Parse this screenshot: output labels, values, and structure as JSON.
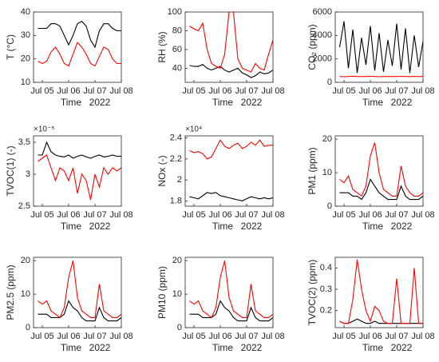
{
  "chart_data": [
    {
      "type": "line",
      "ylabel": "T (°C)",
      "xlabel": "Time",
      "xsublabel": "2022",
      "x": [
        "2022-07-04T20:00",
        "2022-07-05T00:00",
        "2022-07-05T04:00",
        "2022-07-05T08:00",
        "2022-07-05T12:00",
        "2022-07-05T16:00",
        "2022-07-05T20:00",
        "2022-07-06T00:00",
        "2022-07-06T04:00",
        "2022-07-06T08:00",
        "2022-07-06T12:00",
        "2022-07-06T16:00",
        "2022-07-06T20:00",
        "2022-07-07T00:00",
        "2022-07-07T04:00",
        "2022-07-07T08:00",
        "2022-07-07T12:00",
        "2022-07-07T16:00",
        "2022-07-07T20:00",
        "2022-07-08T00:00"
      ],
      "xlim": [
        "2022-07-04T16:00",
        "2022-07-08T00:00"
      ],
      "xticks": [
        {
          "value": "2022-07-05T00:00",
          "label": "Jul 05"
        },
        {
          "value": "2022-07-06T00:00",
          "label": "Jul 06"
        },
        {
          "value": "2022-07-07T00:00",
          "label": "Jul 07"
        },
        {
          "value": "2022-07-08T00:00",
          "label": "Jul 08"
        }
      ],
      "ylim": [
        10,
        40
      ],
      "yticks": [
        10,
        20,
        30,
        40
      ],
      "series": [
        {
          "color": "#000000",
          "values": [
            33,
            33,
            33,
            35,
            35,
            34,
            30,
            26,
            30,
            35,
            36,
            34,
            28,
            25,
            32,
            35,
            35,
            33,
            32,
            32
          ]
        },
        {
          "color": "#ff0000",
          "values": [
            19,
            18,
            19,
            23,
            25,
            22,
            18,
            17,
            22,
            27,
            25,
            22,
            18,
            17,
            21,
            25,
            24,
            20,
            18,
            18
          ]
        }
      ]
    },
    {
      "type": "line",
      "ylabel": "RH (%)",
      "xlabel": "Time",
      "xsublabel": "2022",
      "x": [
        "2022-07-04T20:00",
        "2022-07-05T00:00",
        "2022-07-05T04:00",
        "2022-07-05T08:00",
        "2022-07-05T12:00",
        "2022-07-05T16:00",
        "2022-07-05T20:00",
        "2022-07-06T00:00",
        "2022-07-06T04:00",
        "2022-07-06T08:00",
        "2022-07-06T12:00",
        "2022-07-06T16:00",
        "2022-07-06T20:00",
        "2022-07-07T00:00",
        "2022-07-07T04:00",
        "2022-07-07T08:00",
        "2022-07-07T12:00",
        "2022-07-07T16:00",
        "2022-07-07T20:00",
        "2022-07-08T00:00"
      ],
      "xlim": [
        "2022-07-04T16:00",
        "2022-07-08T00:00"
      ],
      "xticks": [
        {
          "value": "2022-07-05T00:00",
          "label": "Jul 05"
        },
        {
          "value": "2022-07-06T00:00",
          "label": "Jul 06"
        },
        {
          "value": "2022-07-07T00:00",
          "label": "Jul 07"
        },
        {
          "value": "2022-07-08T00:00",
          "label": "Jul 08"
        }
      ],
      "ylim": [
        25,
        100
      ],
      "yticks": [
        40,
        60,
        80,
        100
      ],
      "series": [
        {
          "color": "#000000",
          "values": [
            43,
            42,
            42,
            44,
            40,
            38,
            40,
            42,
            38,
            36,
            38,
            40,
            35,
            33,
            30,
            32,
            36,
            34,
            35,
            38
          ]
        },
        {
          "color": "#ff0000",
          "values": [
            85,
            82,
            80,
            88,
            60,
            45,
            42,
            40,
            55,
            100,
            100,
            50,
            40,
            38,
            36,
            45,
            40,
            38,
            55,
            70
          ]
        }
      ]
    },
    {
      "type": "line",
      "ylabel": "CO₂ (ppm)",
      "xlabel": "Time",
      "xsublabel": "2022",
      "x": [
        "2022-07-04T20:00",
        "2022-07-05T00:00",
        "2022-07-05T04:00",
        "2022-07-05T08:00",
        "2022-07-05T12:00",
        "2022-07-05T16:00",
        "2022-07-05T20:00",
        "2022-07-06T00:00",
        "2022-07-06T04:00",
        "2022-07-06T08:00",
        "2022-07-06T12:00",
        "2022-07-06T16:00",
        "2022-07-06T20:00",
        "2022-07-07T00:00",
        "2022-07-07T04:00",
        "2022-07-07T08:00",
        "2022-07-07T12:00",
        "2022-07-07T16:00",
        "2022-07-07T20:00",
        "2022-07-08T00:00"
      ],
      "xlim": [
        "2022-07-04T16:00",
        "2022-07-08T00:00"
      ],
      "xticks": [
        {
          "value": "2022-07-05T00:00",
          "label": "Jul 05"
        },
        {
          "value": "2022-07-06T00:00",
          "label": "Jul 06"
        },
        {
          "value": "2022-07-07T00:00",
          "label": "Jul 07"
        },
        {
          "value": "2022-07-08T00:00",
          "label": "Jul 08"
        }
      ],
      "ylim": [
        0,
        6000
      ],
      "yticks": [
        0,
        2000,
        4000,
        6000
      ],
      "series": [
        {
          "color": "#000000",
          "values": [
            3000,
            5200,
            1200,
            4500,
            800,
            3800,
            1500,
            4800,
            1000,
            4200,
            900,
            3600,
            1400,
            5000,
            1100,
            4600,
            800,
            4000,
            1300,
            3500
          ]
        },
        {
          "color": "#ff0000",
          "values": [
            500,
            480,
            500,
            520,
            500,
            490,
            500,
            510,
            500,
            480,
            500,
            500,
            490,
            500,
            510,
            500,
            490,
            500,
            500,
            500
          ]
        }
      ]
    },
    {
      "type": "line",
      "ylabel": "TVOC(1) (-)",
      "xlabel": "Time",
      "xsublabel": "2022",
      "axis_multiplier": "×10⁻⁵",
      "x": [
        "2022-07-04T20:00",
        "2022-07-05T00:00",
        "2022-07-05T04:00",
        "2022-07-05T08:00",
        "2022-07-05T12:00",
        "2022-07-05T16:00",
        "2022-07-05T20:00",
        "2022-07-06T00:00",
        "2022-07-06T04:00",
        "2022-07-06T08:00",
        "2022-07-06T12:00",
        "2022-07-06T16:00",
        "2022-07-06T20:00",
        "2022-07-07T00:00",
        "2022-07-07T04:00",
        "2022-07-07T08:00",
        "2022-07-07T12:00",
        "2022-07-07T16:00",
        "2022-07-07T20:00",
        "2022-07-08T00:00"
      ],
      "xlim": [
        "2022-07-04T16:00",
        "2022-07-08T00:00"
      ],
      "xticks": [
        {
          "value": "2022-07-05T00:00",
          "label": "Jul 05"
        },
        {
          "value": "2022-07-06T00:00",
          "label": "Jul 06"
        },
        {
          "value": "2022-07-07T00:00",
          "label": "Jul 07"
        },
        {
          "value": "2022-07-08T00:00",
          "label": "Jul 08"
        }
      ],
      "ylim": [
        2.5,
        3.6
      ],
      "yticks": [
        2.5,
        3,
        3.5
      ],
      "series": [
        {
          "color": "#000000",
          "values": [
            3.3,
            3.3,
            3.5,
            3.35,
            3.3,
            3.28,
            3.27,
            3.3,
            3.25,
            3.28,
            3.3,
            3.27,
            3.25,
            3.28,
            3.3,
            3.27,
            3.28,
            3.3,
            3.28,
            3.28
          ]
        },
        {
          "color": "#ff0000",
          "values": [
            3.2,
            3.25,
            3.3,
            3.1,
            2.9,
            3.1,
            3.05,
            2.9,
            3.1,
            2.7,
            3.0,
            2.9,
            2.6,
            3.0,
            2.8,
            3.1,
            3.0,
            3.1,
            3.05,
            3.1
          ]
        }
      ]
    },
    {
      "type": "line",
      "ylabel": "NOx (-)",
      "xlabel": "Time",
      "xsublabel": "2022",
      "axis_multiplier": "×10⁴",
      "x": [
        "2022-07-04T20:00",
        "2022-07-05T00:00",
        "2022-07-05T04:00",
        "2022-07-05T08:00",
        "2022-07-05T12:00",
        "2022-07-05T16:00",
        "2022-07-05T20:00",
        "2022-07-06T00:00",
        "2022-07-06T04:00",
        "2022-07-06T08:00",
        "2022-07-06T12:00",
        "2022-07-06T16:00",
        "2022-07-06T20:00",
        "2022-07-07T00:00",
        "2022-07-07T04:00",
        "2022-07-07T08:00",
        "2022-07-07T12:00",
        "2022-07-07T16:00",
        "2022-07-07T20:00",
        "2022-07-08T00:00"
      ],
      "xlim": [
        "2022-07-04T16:00",
        "2022-07-08T00:00"
      ],
      "xticks": [
        {
          "value": "2022-07-05T00:00",
          "label": "Jul 05"
        },
        {
          "value": "2022-07-06T00:00",
          "label": "Jul 06"
        },
        {
          "value": "2022-07-07T00:00",
          "label": "Jul 07"
        },
        {
          "value": "2022-07-08T00:00",
          "label": "Jul 08"
        }
      ],
      "ylim": [
        1.75,
        2.42
      ],
      "yticks": [
        1.8,
        2,
        2.2,
        2.4
      ],
      "series": [
        {
          "color": "#000000",
          "values": [
            1.84,
            1.83,
            1.82,
            1.85,
            1.88,
            1.87,
            1.88,
            1.85,
            1.84,
            1.83,
            1.82,
            1.81,
            1.8,
            1.82,
            1.84,
            1.83,
            1.82,
            1.83,
            1.82,
            1.83
          ]
        },
        {
          "color": "#ff0000",
          "values": [
            2.28,
            2.26,
            2.27,
            2.25,
            2.2,
            2.22,
            2.3,
            2.38,
            2.32,
            2.3,
            2.33,
            2.35,
            2.3,
            2.32,
            2.36,
            2.33,
            2.38,
            2.32,
            2.33,
            2.33
          ]
        }
      ]
    },
    {
      "type": "line",
      "ylabel": "PM1 (ppm)",
      "xlabel": "Time",
      "xsublabel": "2022",
      "x": [
        "2022-07-04T20:00",
        "2022-07-05T00:00",
        "2022-07-05T04:00",
        "2022-07-05T08:00",
        "2022-07-05T12:00",
        "2022-07-05T16:00",
        "2022-07-05T20:00",
        "2022-07-06T00:00",
        "2022-07-06T04:00",
        "2022-07-06T08:00",
        "2022-07-06T12:00",
        "2022-07-06T16:00",
        "2022-07-06T20:00",
        "2022-07-07T00:00",
        "2022-07-07T04:00",
        "2022-07-07T08:00",
        "2022-07-07T12:00",
        "2022-07-07T16:00",
        "2022-07-07T20:00",
        "2022-07-08T00:00"
      ],
      "xlim": [
        "2022-07-04T16:00",
        "2022-07-08T00:00"
      ],
      "xticks": [
        {
          "value": "2022-07-05T00:00",
          "label": "Jul 05"
        },
        {
          "value": "2022-07-06T00:00",
          "label": "Jul 06"
        },
        {
          "value": "2022-07-07T00:00",
          "label": "Jul 07"
        },
        {
          "value": "2022-07-08T00:00",
          "label": "Jul 08"
        }
      ],
      "ylim": [
        0,
        21
      ],
      "yticks": [
        0,
        10,
        20
      ],
      "series": [
        {
          "color": "#000000",
          "values": [
            4,
            4,
            4,
            3,
            3,
            2,
            4,
            8,
            6,
            4,
            3,
            2,
            2,
            2,
            6,
            3,
            2,
            2,
            2,
            3
          ]
        },
        {
          "color": "#ff0000",
          "values": [
            8,
            7,
            9,
            5,
            4,
            3,
            6,
            15,
            19,
            10,
            5,
            4,
            3,
            3,
            12,
            6,
            4,
            3,
            3,
            4
          ]
        }
      ]
    },
    {
      "type": "line",
      "ylabel": "PM2.5 (ppm)",
      "xlabel": "Time",
      "xsublabel": "2022",
      "x": [
        "2022-07-04T20:00",
        "2022-07-05T00:00",
        "2022-07-05T04:00",
        "2022-07-05T08:00",
        "2022-07-05T12:00",
        "2022-07-05T16:00",
        "2022-07-05T20:00",
        "2022-07-06T00:00",
        "2022-07-06T04:00",
        "2022-07-06T08:00",
        "2022-07-06T12:00",
        "2022-07-06T16:00",
        "2022-07-06T20:00",
        "2022-07-07T00:00",
        "2022-07-07T04:00",
        "2022-07-07T08:00",
        "2022-07-07T12:00",
        "2022-07-07T16:00",
        "2022-07-07T20:00",
        "2022-07-08T00:00"
      ],
      "xlim": [
        "2022-07-04T16:00",
        "2022-07-08T00:00"
      ],
      "xticks": [
        {
          "value": "2022-07-05T00:00",
          "label": "Jul 05"
        },
        {
          "value": "2022-07-06T00:00",
          "label": "Jul 06"
        },
        {
          "value": "2022-07-07T00:00",
          "label": "Jul 07"
        },
        {
          "value": "2022-07-08T00:00",
          "label": "Jul 08"
        }
      ],
      "ylim": [
        0,
        21
      ],
      "yticks": [
        0,
        10,
        20
      ],
      "series": [
        {
          "color": "#000000",
          "values": [
            4,
            4,
            4,
            3,
            3,
            3,
            4,
            8,
            6,
            5,
            3,
            2,
            2,
            2,
            6,
            3,
            2,
            2,
            2,
            3
          ]
        },
        {
          "color": "#ff0000",
          "values": [
            8,
            7,
            8,
            5,
            4,
            3,
            6,
            15,
            20,
            9,
            5,
            4,
            3,
            3,
            13,
            5,
            4,
            3,
            3,
            4
          ]
        }
      ]
    },
    {
      "type": "line",
      "ylabel": "PM10 (ppm)",
      "xlabel": "Time",
      "xsublabel": "2022",
      "x": [
        "2022-07-04T20:00",
        "2022-07-05T00:00",
        "2022-07-05T04:00",
        "2022-07-05T08:00",
        "2022-07-05T12:00",
        "2022-07-05T16:00",
        "2022-07-05T20:00",
        "2022-07-06T00:00",
        "2022-07-06T04:00",
        "2022-07-06T08:00",
        "2022-07-06T12:00",
        "2022-07-06T16:00",
        "2022-07-06T20:00",
        "2022-07-07T00:00",
        "2022-07-07T04:00",
        "2022-07-07T08:00",
        "2022-07-07T12:00",
        "2022-07-07T16:00",
        "2022-07-07T20:00",
        "2022-07-08T00:00"
      ],
      "xlim": [
        "2022-07-04T16:00",
        "2022-07-08T00:00"
      ],
      "xticks": [
        {
          "value": "2022-07-05T00:00",
          "label": "Jul 05"
        },
        {
          "value": "2022-07-06T00:00",
          "label": "Jul 06"
        },
        {
          "value": "2022-07-07T00:00",
          "label": "Jul 07"
        },
        {
          "value": "2022-07-08T00:00",
          "label": "Jul 08"
        }
      ],
      "ylim": [
        0,
        21
      ],
      "yticks": [
        0,
        10,
        20
      ],
      "series": [
        {
          "color": "#000000",
          "values": [
            4,
            4,
            4,
            3,
            3,
            3,
            4,
            8,
            6,
            5,
            3,
            2,
            2,
            2,
            6,
            3,
            2,
            2,
            2,
            3
          ]
        },
        {
          "color": "#ff0000",
          "values": [
            8,
            7,
            8,
            5,
            4,
            3,
            6,
            15,
            20,
            9,
            5,
            4,
            3,
            3,
            13,
            5,
            4,
            3,
            3,
            4
          ]
        }
      ]
    },
    {
      "type": "line",
      "ylabel": "TVOC(2) (ppm)",
      "xlabel": "Time",
      "xsublabel": "2022",
      "x": [
        "2022-07-04T20:00",
        "2022-07-05T00:00",
        "2022-07-05T04:00",
        "2022-07-05T08:00",
        "2022-07-05T12:00",
        "2022-07-05T16:00",
        "2022-07-05T20:00",
        "2022-07-06T00:00",
        "2022-07-06T04:00",
        "2022-07-06T08:00",
        "2022-07-06T12:00",
        "2022-07-06T16:00",
        "2022-07-06T20:00",
        "2022-07-07T00:00",
        "2022-07-07T04:00",
        "2022-07-07T08:00",
        "2022-07-07T12:00",
        "2022-07-07T16:00",
        "2022-07-07T20:00",
        "2022-07-08T00:00"
      ],
      "xlim": [
        "2022-07-04T16:00",
        "2022-07-08T00:00"
      ],
      "xticks": [
        {
          "value": "2022-07-05T00:00",
          "label": "Jul 05"
        },
        {
          "value": "2022-07-06T00:00",
          "label": "Jul 06"
        },
        {
          "value": "2022-07-07T00:00",
          "label": "Jul 07"
        },
        {
          "value": "2022-07-08T00:00",
          "label": "Jul 08"
        }
      ],
      "ylim": [
        0.12,
        0.45
      ],
      "yticks": [
        0.2,
        0.3,
        0.4
      ],
      "series": [
        {
          "color": "#000000",
          "values": [
            0.15,
            0.14,
            0.14,
            0.15,
            0.16,
            0.15,
            0.14,
            0.14,
            0.15,
            0.14,
            0.14,
            0.14,
            0.14,
            0.14,
            0.14,
            0.14,
            0.14,
            0.14,
            0.14,
            0.14
          ]
        },
        {
          "color": "#ff0000",
          "values": [
            0.15,
            0.14,
            0.14,
            0.25,
            0.44,
            0.3,
            0.2,
            0.15,
            0.22,
            0.2,
            0.15,
            0.14,
            0.14,
            0.35,
            0.14,
            0.14,
            0.14,
            0.4,
            0.14,
            0.14
          ]
        }
      ]
    }
  ]
}
